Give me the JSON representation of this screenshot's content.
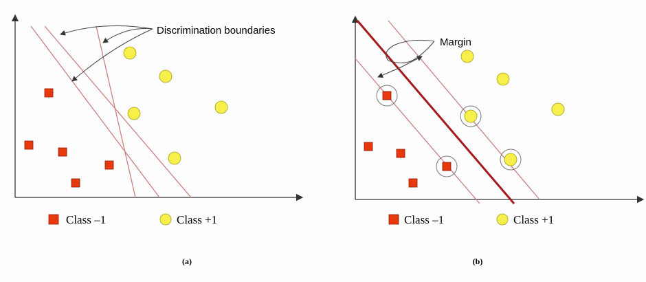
{
  "panels": [
    {
      "annotation": "Discrimination boundaries",
      "legend": [
        "Class –1",
        "Class +1"
      ],
      "caption": "(a)"
    },
    {
      "annotation": "Margin",
      "legend": [
        "Class –1",
        "Class +1"
      ],
      "caption": "(b)"
    }
  ]
}
